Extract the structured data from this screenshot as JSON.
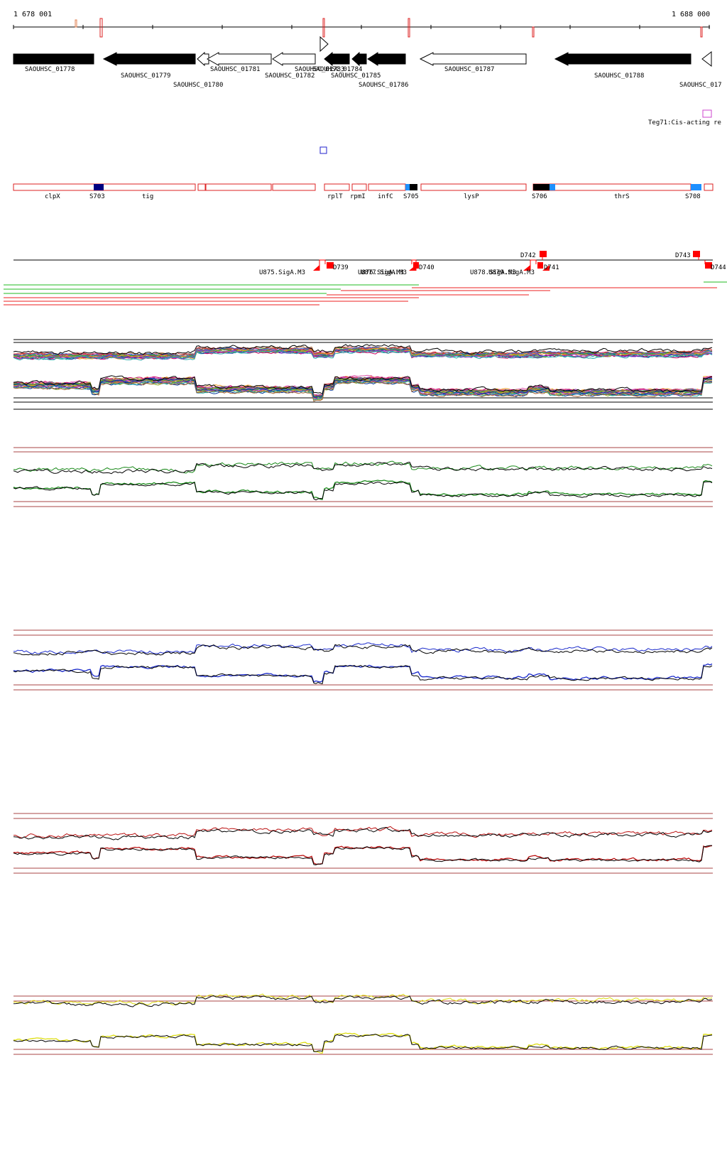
{
  "ruler": {
    "start_label": "1 678 001",
    "end_label": "1 688 000"
  },
  "genes": [
    {
      "label": "SAOUHSC_01778",
      "filled": true,
      "dir": "right"
    },
    {
      "label": "SAOUHSC_01779",
      "filled": true,
      "dir": "left"
    },
    {
      "label": "SAOUHSC_01780",
      "filled": false,
      "dir": "left"
    },
    {
      "label": "SAOUHSC_01781",
      "filled": false,
      "dir": "left"
    },
    {
      "label": "SAOUHSC_01782",
      "filled": false,
      "dir": "left"
    },
    {
      "label": "SAOUHSC_01783",
      "filled": false,
      "dir": "right"
    },
    {
      "label": "SAOUHSC_01784",
      "filled": true,
      "dir": "left"
    },
    {
      "label": "SAOUHSC_01785",
      "filled": true,
      "dir": "left"
    },
    {
      "label": "SAOUHSC_01786",
      "filled": true,
      "dir": "left"
    },
    {
      "label": "SAOUHSC_01787",
      "filled": false,
      "dir": "left"
    },
    {
      "label": "SAOUHSC_01788",
      "filled": true,
      "dir": "left"
    },
    {
      "label": "SAOUHSC_017",
      "filled": false,
      "dir": "left"
    }
  ],
  "cis_element": {
    "label": "Teg71:Cis-acting re",
    "color": "#cc44cc"
  },
  "operons": [
    {
      "label": "clpX"
    },
    {
      "label": "S703"
    },
    {
      "label": "tig"
    },
    {
      "label": "rplT"
    },
    {
      "label": "rpmI"
    },
    {
      "label": "infC"
    },
    {
      "label": "S705"
    },
    {
      "label": "lysP"
    },
    {
      "label": "S706"
    },
    {
      "label": "thrS"
    },
    {
      "label": "S708"
    }
  ],
  "promoters": [
    {
      "label": "D739"
    },
    {
      "label": "D740"
    },
    {
      "label": "D741"
    },
    {
      "label": "D742"
    },
    {
      "label": "D743"
    },
    {
      "label": "D744"
    },
    {
      "label": "U875.SigA.M3"
    },
    {
      "label": "U876.SigA.M3"
    },
    {
      "label": "U877.SigA.M3"
    },
    {
      "label": "U878.SigA.M3"
    },
    {
      "label": "U879.SigA.M3"
    }
  ],
  "colors": {
    "gene_fill": "#000000",
    "operon_border": "#dd2222",
    "sigma_navy": "#000080",
    "sigma_blue": "#1e90ff",
    "promoter": "#ff0000",
    "green_seg": "#22bb22",
    "red_seg": "#ee2222",
    "track_green": "#1a8a1a",
    "track_blue": "#1a2acc",
    "track_red": "#bb1111",
    "track_yellow": "#dddd11",
    "baseline": "#aa4444"
  },
  "tracks": [
    {
      "name": "all-conditions-track",
      "color": "#multi"
    },
    {
      "name": "green-condition-track",
      "color": "#1a8a1a"
    },
    {
      "name": "blue-condition-track",
      "color": "#1a2acc"
    },
    {
      "name": "red-condition-track",
      "color": "#bb1111"
    },
    {
      "name": "yellow-condition-track",
      "color": "#dddd11"
    }
  ]
}
